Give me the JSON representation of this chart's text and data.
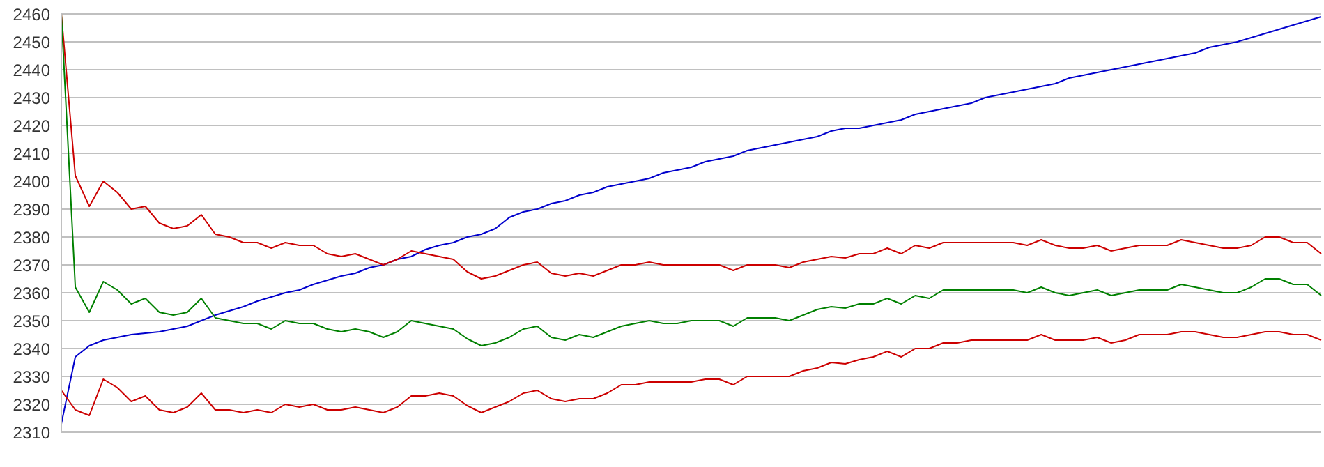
{
  "chart_data": {
    "type": "line",
    "categories": [
      null,
      null,
      null,
      null,
      null,
      null,
      null,
      null,
      null,
      null,
      null,
      null,
      null,
      null,
      null,
      null,
      null,
      null,
      null,
      null,
      null,
      null,
      null,
      null,
      null,
      null,
      null,
      null,
      null,
      null,
      null,
      null,
      null,
      null,
      null,
      null,
      null,
      null,
      null,
      null,
      null,
      null,
      null,
      null,
      null,
      null,
      null,
      null,
      null,
      null,
      null,
      null,
      null,
      null,
      null,
      null,
      null,
      null,
      null,
      null,
      null,
      null,
      null,
      null,
      null,
      null,
      null,
      null,
      null,
      null,
      null,
      null,
      null,
      null,
      null,
      null,
      null,
      null,
      null,
      null,
      null,
      null,
      null,
      null,
      null,
      null,
      null,
      null,
      null,
      null,
      null
    ],
    "ylim": [
      2310,
      2460
    ],
    "yticks": [
      2310,
      2320,
      2330,
      2340,
      2350,
      2360,
      2370,
      2380,
      2390,
      2400,
      2410,
      2420,
      2430,
      2440,
      2450,
      2460
    ],
    "grid": "y",
    "tick_labels": "y",
    "marker": "none",
    "series": [
      {
        "color": "#0000cc",
        "values": [
          2313,
          2337,
          2341,
          2343,
          2344,
          2345,
          2345.5,
          2346,
          2347,
          2348,
          2350,
          2352,
          2353.5,
          2355,
          2357,
          2358.5,
          2360,
          2361,
          2363,
          2364.5,
          2366,
          2367,
          2369,
          2370,
          2372,
          2373,
          2375.5,
          2377,
          2378,
          2380,
          2381,
          2383,
          2387,
          2389,
          2390,
          2392,
          2393,
          2395,
          2396,
          2398,
          2399,
          2400,
          2401,
          2403,
          2404,
          2405,
          2407,
          2408,
          2409,
          2411,
          2412,
          2413,
          2414,
          2415,
          2416,
          2418,
          2419,
          2419,
          2420,
          2421,
          2422,
          2424,
          2425,
          2426,
          2427,
          2428,
          2430,
          2431,
          2432,
          2433,
          2434,
          2435,
          2437,
          2438,
          2439,
          2440,
          2441,
          2442,
          2443,
          2444,
          2445,
          2446,
          2448,
          2449,
          2450,
          2451.5,
          2453,
          2454.5,
          2456,
          2457.5,
          2459
        ]
      },
      {
        "color": "#cc0000",
        "values": [
          2460,
          2402,
          2391,
          2400,
          2396,
          2390,
          2391,
          2385,
          2383,
          2384,
          2388,
          2381,
          2380,
          2378,
          2378,
          2376,
          2378,
          2377,
          2377,
          2374,
          2373,
          2374,
          2372,
          2370,
          2372,
          2375,
          2374,
          2373,
          2372,
          2367.5,
          2365,
          2366,
          2368,
          2370,
          2371,
          2367,
          2366,
          2367,
          2366,
          2368,
          2370,
          2370,
          2371,
          2370,
          2370,
          2370,
          2370,
          2370,
          2368,
          2370,
          2370,
          2370,
          2369,
          2371,
          2372,
          2373,
          2372.5,
          2374,
          2374,
          2376,
          2374,
          2377,
          2376,
          2378,
          2378,
          2378,
          2378,
          2378,
          2378,
          2377,
          2379,
          2377,
          2376,
          2376,
          2377,
          2375,
          2376,
          2377,
          2377,
          2377,
          2379,
          2378,
          2377,
          2376,
          2376,
          2377,
          2380,
          2380,
          2378,
          2378,
          2374
        ]
      },
      {
        "color": "#008000",
        "values": [
          2460,
          2362,
          2353,
          2364,
          2361,
          2356,
          2358,
          2353,
          2352,
          2353,
          2358,
          2351,
          2350,
          2349,
          2349,
          2347,
          2350,
          2349,
          2349,
          2347,
          2346,
          2347,
          2346,
          2344,
          2346,
          2350,
          2349,
          2348,
          2347,
          2343.5,
          2341,
          2342,
          2344,
          2347,
          2348,
          2344,
          2343,
          2345,
          2344,
          2346,
          2348,
          2349,
          2350,
          2349,
          2349,
          2350,
          2350,
          2350,
          2348,
          2351,
          2351,
          2351,
          2350,
          2352,
          2354,
          2355,
          2354.5,
          2356,
          2356,
          2358,
          2356,
          2359,
          2358,
          2361,
          2361,
          2361,
          2361,
          2361,
          2361,
          2360,
          2362,
          2360,
          2359,
          2360,
          2361,
          2359,
          2360,
          2361,
          2361,
          2361,
          2363,
          2362,
          2361,
          2360,
          2360,
          2362,
          2365,
          2365,
          2363,
          2363,
          2359
        ]
      },
      {
        "color": "#cc0000",
        "values": [
          2325,
          2318,
          2316,
          2329,
          2326,
          2321,
          2323,
          2318,
          2317,
          2319,
          2324,
          2318,
          2318,
          2317,
          2318,
          2317,
          2320,
          2319,
          2320,
          2318,
          2318,
          2319,
          2318,
          2317,
          2319,
          2323,
          2323,
          2324,
          2323,
          2319.5,
          2317,
          2319,
          2321,
          2324,
          2325,
          2322,
          2321,
          2322,
          2322,
          2324,
          2327,
          2327,
          2328,
          2328,
          2328,
          2328,
          2329,
          2329,
          2327,
          2330,
          2330,
          2330,
          2330,
          2332,
          2333,
          2335,
          2334.5,
          2336,
          2337,
          2339,
          2337,
          2340,
          2340,
          2342,
          2342,
          2343,
          2343,
          2343,
          2343,
          2343,
          2345,
          2343,
          2343,
          2343,
          2344,
          2342,
          2343,
          2345,
          2345,
          2345,
          2346,
          2346,
          2345,
          2344,
          2344,
          2345,
          2346,
          2346,
          2345,
          2345,
          2343
        ]
      }
    ]
  }
}
